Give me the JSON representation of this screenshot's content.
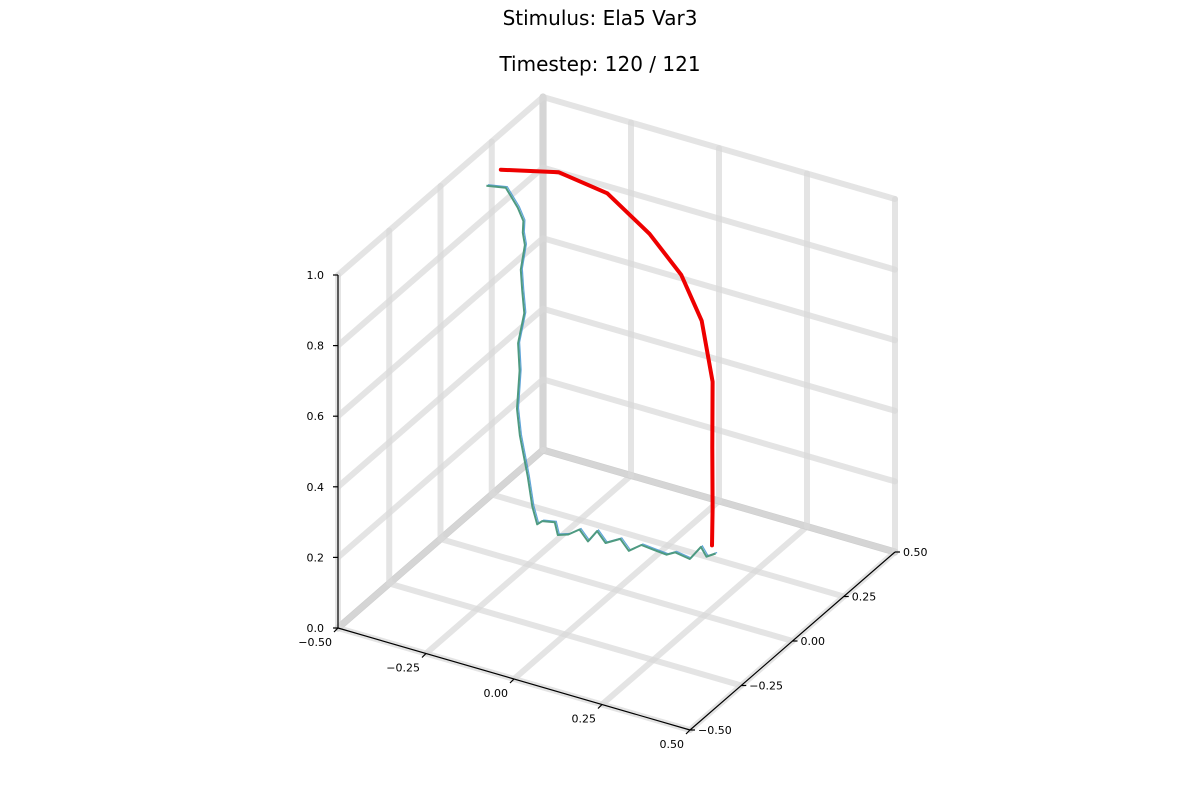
{
  "chart_data": {
    "type": "line3d",
    "title": "Stimulus: Ela5 Var3",
    "subtitle": "Timestep: 120 / 121",
    "xlim": [
      -0.5,
      0.5
    ],
    "ylim": [
      -0.5,
      0.5
    ],
    "zlim": [
      0.0,
      1.0
    ],
    "x_ticks": [
      "−0.50",
      "−0.25",
      "0.00",
      "0.25",
      "0.50"
    ],
    "y_ticks": [
      "−0.50",
      "−0.25",
      "0.00",
      "0.25",
      "0.50"
    ],
    "z_ticks": [
      "0.0",
      "0.2",
      "0.4",
      "0.6",
      "0.8",
      "1.0"
    ],
    "grid": true,
    "colors": {
      "trajectory": "#4e9a80",
      "trajectory_alt": "#3a8fd0",
      "stimulus": "#ee0000"
    },
    "series": [
      {
        "role": "trajectory",
        "points": [
          [
            -0.55,
            0.31,
            0.83
          ],
          [
            -0.53,
            0.37,
            0.8
          ],
          [
            -0.49,
            0.36,
            0.76
          ],
          [
            -0.48,
            0.37,
            0.72
          ],
          [
            -0.47,
            0.35,
            0.7
          ],
          [
            -0.47,
            0.36,
            0.66
          ],
          [
            -0.47,
            0.34,
            0.6
          ],
          [
            -0.46,
            0.33,
            0.55
          ],
          [
            -0.46,
            0.34,
            0.48
          ],
          [
            -0.46,
            0.31,
            0.41
          ],
          [
            -0.45,
            0.3,
            0.34
          ],
          [
            -0.44,
            0.27,
            0.25
          ],
          [
            -0.42,
            0.25,
            0.19
          ],
          [
            -0.38,
            0.22,
            0.1
          ],
          [
            -0.35,
            0.19,
            0.04
          ],
          [
            -0.33,
            0.18,
            0.0
          ],
          [
            -0.31,
            0.17,
            0.02
          ],
          [
            -0.28,
            0.18,
            0.02
          ],
          [
            -0.26,
            0.16,
            0.0
          ],
          [
            -0.23,
            0.16,
            0.01
          ],
          [
            -0.21,
            0.18,
            0.02
          ],
          [
            -0.18,
            0.17,
            0.0
          ],
          [
            -0.16,
            0.18,
            0.03
          ],
          [
            -0.13,
            0.17,
            0.01
          ],
          [
            -0.1,
            0.19,
            0.02
          ],
          [
            -0.07,
            0.18,
            0.0
          ],
          [
            -0.04,
            0.19,
            0.02
          ],
          [
            -0.01,
            0.2,
            0.01
          ],
          [
            0.02,
            0.21,
            0.0
          ],
          [
            0.05,
            0.2,
            0.02
          ],
          [
            0.08,
            0.22,
            0.0
          ],
          [
            0.1,
            0.24,
            0.03
          ],
          [
            0.11,
            0.25,
            0.0
          ],
          [
            0.13,
            0.26,
            0.01
          ]
        ]
      },
      {
        "role": "stimulus",
        "points": [
          [
            -0.55,
            0.38,
            0.84
          ],
          [
            -0.42,
            0.44,
            0.84
          ],
          [
            -0.3,
            0.47,
            0.8
          ],
          [
            -0.18,
            0.47,
            0.72
          ],
          [
            -0.09,
            0.47,
            0.63
          ],
          [
            -0.02,
            0.45,
            0.53
          ],
          [
            0.04,
            0.4,
            0.4
          ],
          [
            0.08,
            0.33,
            0.26
          ],
          [
            0.11,
            0.28,
            0.12
          ],
          [
            0.12,
            0.26,
            0.03
          ]
        ]
      }
    ]
  }
}
